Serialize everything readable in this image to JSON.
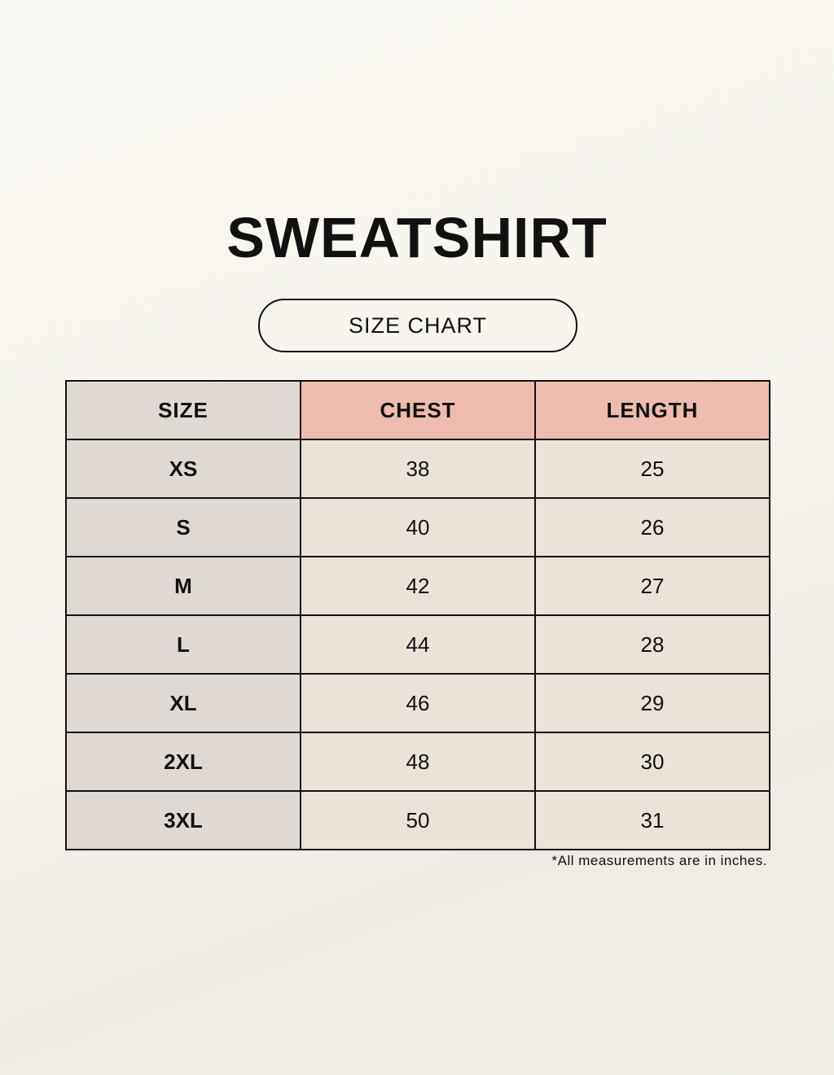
{
  "title": "SWEATSHIRT",
  "subtitle": "SIZE CHART",
  "colors": {
    "size_column": "#e0d9d3",
    "header_accent": "#eebcae",
    "cell": "#ebe3d8"
  },
  "table": {
    "headers": [
      "SIZE",
      "CHEST",
      "LENGTH"
    ],
    "rows": [
      [
        "XS",
        "38",
        "25"
      ],
      [
        "S",
        "40",
        "26"
      ],
      [
        "M",
        "42",
        "27"
      ],
      [
        "L",
        "44",
        "28"
      ],
      [
        "XL",
        "46",
        "29"
      ],
      [
        "2XL",
        "48",
        "30"
      ],
      [
        "3XL",
        "50",
        "31"
      ]
    ]
  },
  "footnote": "*All measurements are in inches."
}
